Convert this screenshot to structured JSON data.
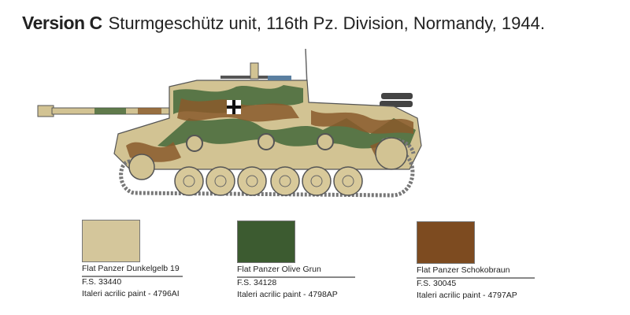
{
  "header": {
    "version": "Version C",
    "description": "Sturmgeschütz unit, 116th Pz. Division, Normandy, 1944."
  },
  "illustration": {
    "subject": "Sturmgeschütz assault gun side view",
    "camouflage_colors": [
      "#d2c393",
      "#44683a",
      "#8a5a2c"
    ]
  },
  "colors": [
    {
      "name": "Flat Panzer Dunkelgelb 19",
      "fs": "F.S. 33440",
      "paint": "Italeri acrilic paint - 4796AI",
      "hex": "#d4c69b"
    },
    {
      "name": "Flat Panzer Olive Grun",
      "fs": "F.S. 34128",
      "paint": "Italeri acrilic paint - 4798AP",
      "hex": "#3c5b30"
    },
    {
      "name": "Flat Panzer Schokobraun",
      "fs": "F.S. 30045",
      "paint": "Italeri acrilic paint - 4797AP",
      "hex": "#7d4b20"
    }
  ]
}
